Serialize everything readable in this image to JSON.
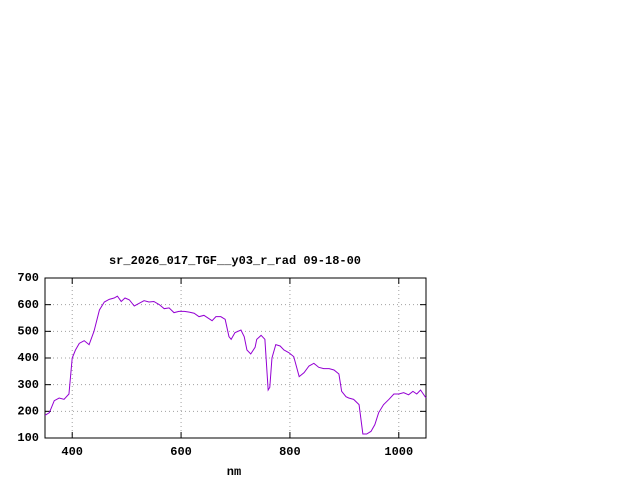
{
  "chart_data": {
    "type": "line",
    "title": "sr_2026_017_TGF__y03_r_rad 09-18-00",
    "xlabel": "nm",
    "xlim": [
      350,
      1050
    ],
    "xticks": [
      400,
      600,
      800,
      1000
    ],
    "ylim": [
      100,
      700
    ],
    "yticks": [
      100,
      200,
      300,
      400,
      500,
      600,
      700
    ],
    "grid": true,
    "x": [
      350,
      358,
      367,
      376,
      385,
      394,
      400,
      406,
      413,
      422,
      431,
      440,
      450,
      459,
      468,
      477,
      483,
      490,
      497,
      505,
      514,
      523,
      532,
      541,
      550,
      560,
      569,
      578,
      587,
      596,
      606,
      615,
      624,
      633,
      642,
      651,
      657,
      664,
      673,
      681,
      688,
      692,
      699,
      710,
      716,
      721,
      728,
      736,
      739,
      747,
      754,
      760,
      763,
      767,
      774,
      782,
      789,
      798,
      807,
      817,
      826,
      835,
      844,
      853,
      862,
      872,
      881,
      890,
      895,
      903,
      908,
      917,
      927,
      934,
      941,
      949,
      956,
      963,
      972,
      982,
      991,
      1000,
      1009,
      1018,
      1026,
      1033,
      1040,
      1050
    ],
    "series": [
      {
        "color": "#9400d3",
        "values": [
          185,
          195,
          240,
          250,
          245,
          265,
          400,
          430,
          455,
          465,
          450,
          500,
          580,
          610,
          620,
          625,
          632,
          612,
          625,
          618,
          595,
          605,
          615,
          610,
          612,
          600,
          585,
          588,
          570,
          575,
          575,
          572,
          568,
          555,
          560,
          548,
          540,
          555,
          555,
          545,
          480,
          470,
          495,
          505,
          480,
          430,
          415,
          440,
          470,
          485,
          470,
          280,
          290,
          400,
          450,
          445,
          430,
          420,
          405,
          330,
          345,
          370,
          380,
          365,
          360,
          360,
          355,
          340,
          275,
          255,
          250,
          245,
          225,
          115,
          115,
          125,
          150,
          195,
          225,
          245,
          265,
          265,
          270,
          262,
          275,
          265,
          280,
          250
        ]
      }
    ]
  }
}
